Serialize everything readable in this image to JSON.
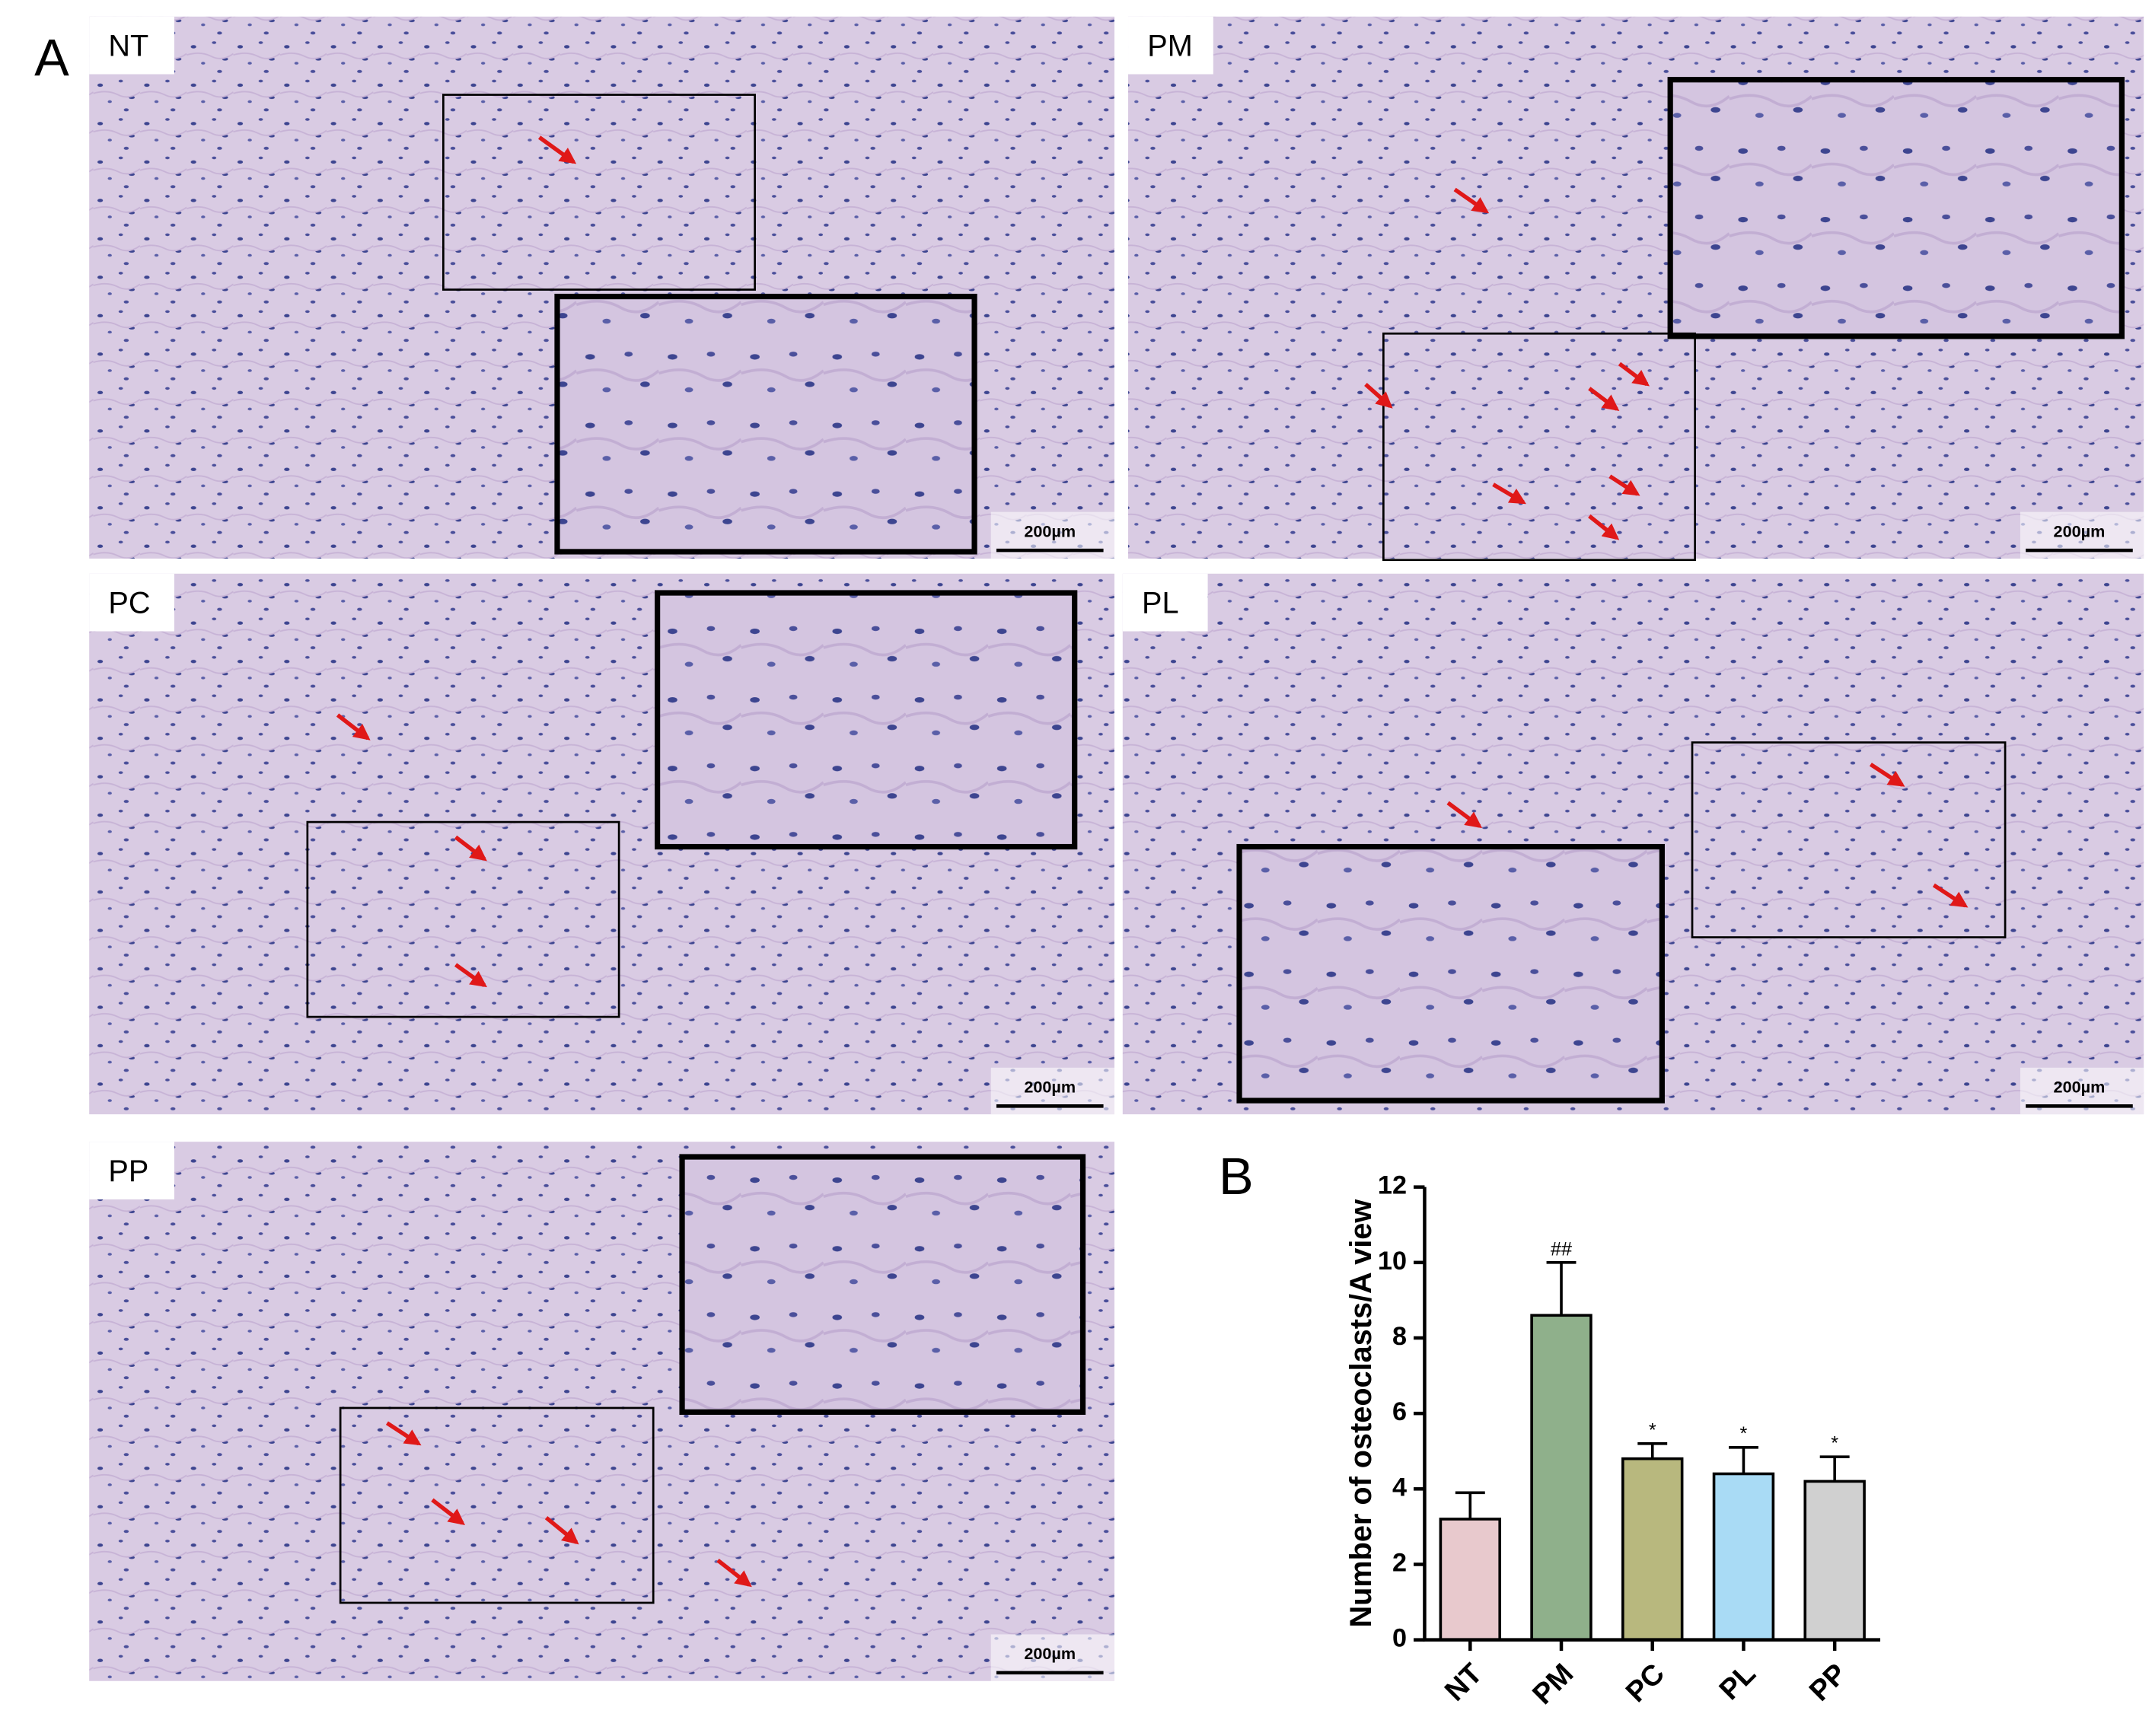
{
  "figure": {
    "panel_a_label": "A",
    "panel_b_label": "B",
    "panels": [
      {
        "label": "NT",
        "scale_bar": "200µm"
      },
      {
        "label": "PM",
        "scale_bar": "200µm"
      },
      {
        "label": "PC",
        "scale_bar": "200µm"
      },
      {
        "label": "PL",
        "scale_bar": "200µm"
      },
      {
        "label": "PP",
        "scale_bar": "200µm"
      }
    ]
  },
  "chart_data": {
    "type": "bar",
    "y_label": "Number of osteoclasts/A view",
    "categories": [
      "NT",
      "PM",
      "PC",
      "PL",
      "PP"
    ],
    "values": [
      3.2,
      8.6,
      4.8,
      4.4,
      4.2
    ],
    "errors": [
      0.7,
      1.4,
      0.4,
      0.7,
      0.65
    ],
    "annotations": [
      null,
      "##",
      "*",
      "*",
      "*"
    ],
    "colors": [
      "#e8c9cd",
      "#8fb08b",
      "#b8b87e",
      "#a9dbf5",
      "#d0d0d0"
    ],
    "ylim": [
      0,
      12
    ],
    "yticks": [
      0,
      2,
      4,
      6,
      8,
      10,
      12
    ]
  }
}
